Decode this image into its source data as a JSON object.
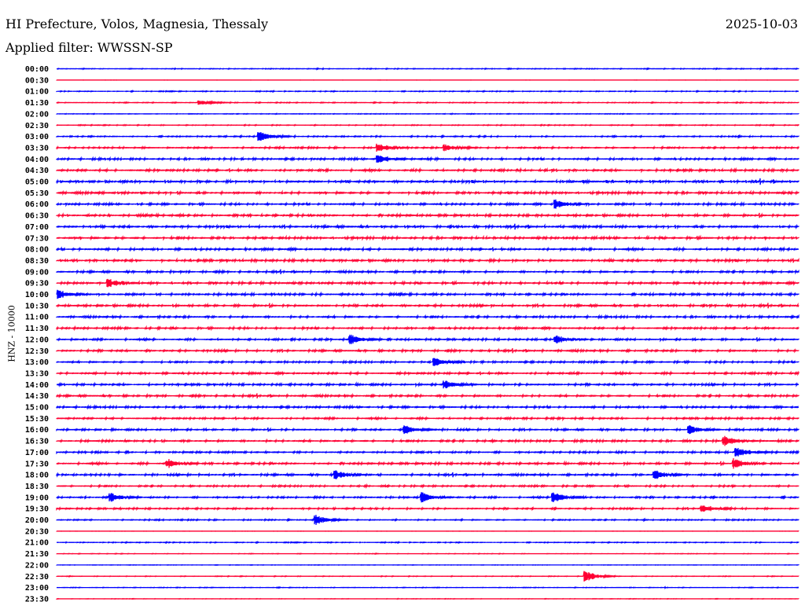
{
  "header": {
    "station": "HI Prefecture, Volos, Magnesia, Thessaly",
    "date": "2025-10-03",
    "filter": "Applied filter: WWSSN-SP"
  },
  "chart_data": {
    "type": "line",
    "title": "HI Prefecture, Volos, Magnesia, Thessaly",
    "ylabel": "HNZ - 10000",
    "xlabel": "",
    "minutes_per_row": 30,
    "colors": {
      "even": "#0000ff",
      "odd": "#ff0033"
    },
    "rows": [
      {
        "label": "00:00",
        "noise": 0.2
      },
      {
        "label": "00:30",
        "noise": 0.04
      },
      {
        "label": "01:00",
        "noise": 0.2
      },
      {
        "label": "01:30",
        "noise": 0.2
      },
      {
        "label": "02:00",
        "noise": 0.15
      },
      {
        "label": "02:30",
        "noise": 0.2
      },
      {
        "label": "03:00",
        "noise": 0.3
      },
      {
        "label": "03:30",
        "noise": 0.4
      },
      {
        "label": "04:00",
        "noise": 0.5
      },
      {
        "label": "04:30",
        "noise": 0.55
      },
      {
        "label": "05:00",
        "noise": 0.65
      },
      {
        "label": "05:30",
        "noise": 0.6
      },
      {
        "label": "06:00",
        "noise": 0.5
      },
      {
        "label": "06:30",
        "noise": 0.55
      },
      {
        "label": "07:00",
        "noise": 0.6
      },
      {
        "label": "07:30",
        "noise": 0.6
      },
      {
        "label": "08:00",
        "noise": 0.55
      },
      {
        "label": "08:30",
        "noise": 0.6
      },
      {
        "label": "09:00",
        "noise": 0.5
      },
      {
        "label": "09:30",
        "noise": 0.55
      },
      {
        "label": "10:00",
        "noise": 0.5
      },
      {
        "label": "10:30",
        "noise": 0.55
      },
      {
        "label": "11:00",
        "noise": 0.5
      },
      {
        "label": "11:30",
        "noise": 0.5
      },
      {
        "label": "12:00",
        "noise": 0.45
      },
      {
        "label": "12:30",
        "noise": 0.5
      },
      {
        "label": "13:00",
        "noise": 0.45
      },
      {
        "label": "13:30",
        "noise": 0.5
      },
      {
        "label": "14:00",
        "noise": 0.5
      },
      {
        "label": "14:30",
        "noise": 0.5
      },
      {
        "label": "15:00",
        "noise": 0.5
      },
      {
        "label": "15:30",
        "noise": 0.45
      },
      {
        "label": "16:00",
        "noise": 0.45
      },
      {
        "label": "16:30",
        "noise": 0.5
      },
      {
        "label": "17:00",
        "noise": 0.45
      },
      {
        "label": "17:30",
        "noise": 0.5
      },
      {
        "label": "18:00",
        "noise": 0.5
      },
      {
        "label": "18:30",
        "noise": 0.4
      },
      {
        "label": "19:00",
        "noise": 0.4
      },
      {
        "label": "19:30",
        "noise": 0.4
      },
      {
        "label": "20:00",
        "noise": 0.3
      },
      {
        "label": "20:30",
        "noise": 0.05
      },
      {
        "label": "21:00",
        "noise": 0.2
      },
      {
        "label": "21:30",
        "noise": 0.12
      },
      {
        "label": "22:00",
        "noise": 0.08
      },
      {
        "label": "22:30",
        "noise": 0.15
      },
      {
        "label": "23:00",
        "noise": 0.15
      },
      {
        "label": "23:30",
        "noise": 0.1
      }
    ],
    "events": [
      {
        "row": 3,
        "minute": 5.8,
        "amp": 0.4
      },
      {
        "row": 6,
        "minute": 8.2,
        "amp": 1.0
      },
      {
        "row": 7,
        "minute": 13.0,
        "amp": 0.8
      },
      {
        "row": 7,
        "minute": 15.7,
        "amp": 0.7
      },
      {
        "row": 8,
        "minute": 13.0,
        "amp": 0.8
      },
      {
        "row": 12,
        "minute": 20.2,
        "amp": 0.8
      },
      {
        "row": 19,
        "minute": 2.1,
        "amp": 0.7
      },
      {
        "row": 20,
        "minute": 0.1,
        "amp": 0.9
      },
      {
        "row": 24,
        "minute": 11.9,
        "amp": 1.0
      },
      {
        "row": 24,
        "minute": 20.2,
        "amp": 0.7
      },
      {
        "row": 26,
        "minute": 15.3,
        "amp": 0.8
      },
      {
        "row": 28,
        "minute": 15.7,
        "amp": 0.8
      },
      {
        "row": 32,
        "minute": 14.1,
        "amp": 0.8
      },
      {
        "row": 32,
        "minute": 25.6,
        "amp": 0.8
      },
      {
        "row": 33,
        "minute": 27.0,
        "amp": 0.9
      },
      {
        "row": 34,
        "minute": 27.5,
        "amp": 1.0
      },
      {
        "row": 35,
        "minute": 4.5,
        "amp": 0.8
      },
      {
        "row": 35,
        "minute": 27.4,
        "amp": 0.9
      },
      {
        "row": 36,
        "minute": 11.3,
        "amp": 0.8
      },
      {
        "row": 36,
        "minute": 24.2,
        "amp": 0.8
      },
      {
        "row": 38,
        "minute": 2.2,
        "amp": 0.9
      },
      {
        "row": 38,
        "minute": 14.8,
        "amp": 0.9
      },
      {
        "row": 38,
        "minute": 20.1,
        "amp": 0.9
      },
      {
        "row": 39,
        "minute": 26.1,
        "amp": 0.8
      },
      {
        "row": 40,
        "minute": 10.5,
        "amp": 0.9
      },
      {
        "row": 45,
        "minute": 21.4,
        "amp": 1.0
      }
    ]
  }
}
